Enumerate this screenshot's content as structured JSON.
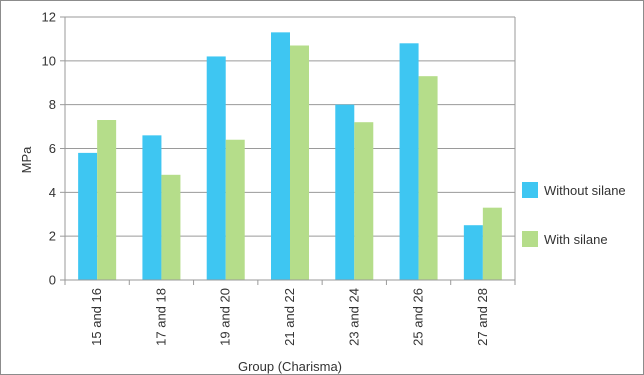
{
  "chart_data": {
    "type": "bar",
    "xlabel": "Group (Charisma)",
    "ylabel": "MPa",
    "ylim": [
      0,
      12
    ],
    "yticks": [
      0,
      2,
      4,
      6,
      8,
      10,
      12
    ],
    "grid": true,
    "legend_position": "right",
    "categories": [
      "15 and 16",
      "17 and 18",
      "19 and 20",
      "21 and 22",
      "23 and 24",
      "25 and 26",
      "27 and 28"
    ],
    "series": [
      {
        "name": "Without silane",
        "color": "#3ec6f2",
        "values": [
          5.8,
          6.6,
          10.2,
          11.3,
          8.0,
          10.8,
          2.5
        ]
      },
      {
        "name": "With silane",
        "color": "#b5dd8a",
        "values": [
          7.3,
          4.8,
          6.4,
          10.7,
          7.2,
          9.3,
          3.3
        ]
      }
    ]
  }
}
